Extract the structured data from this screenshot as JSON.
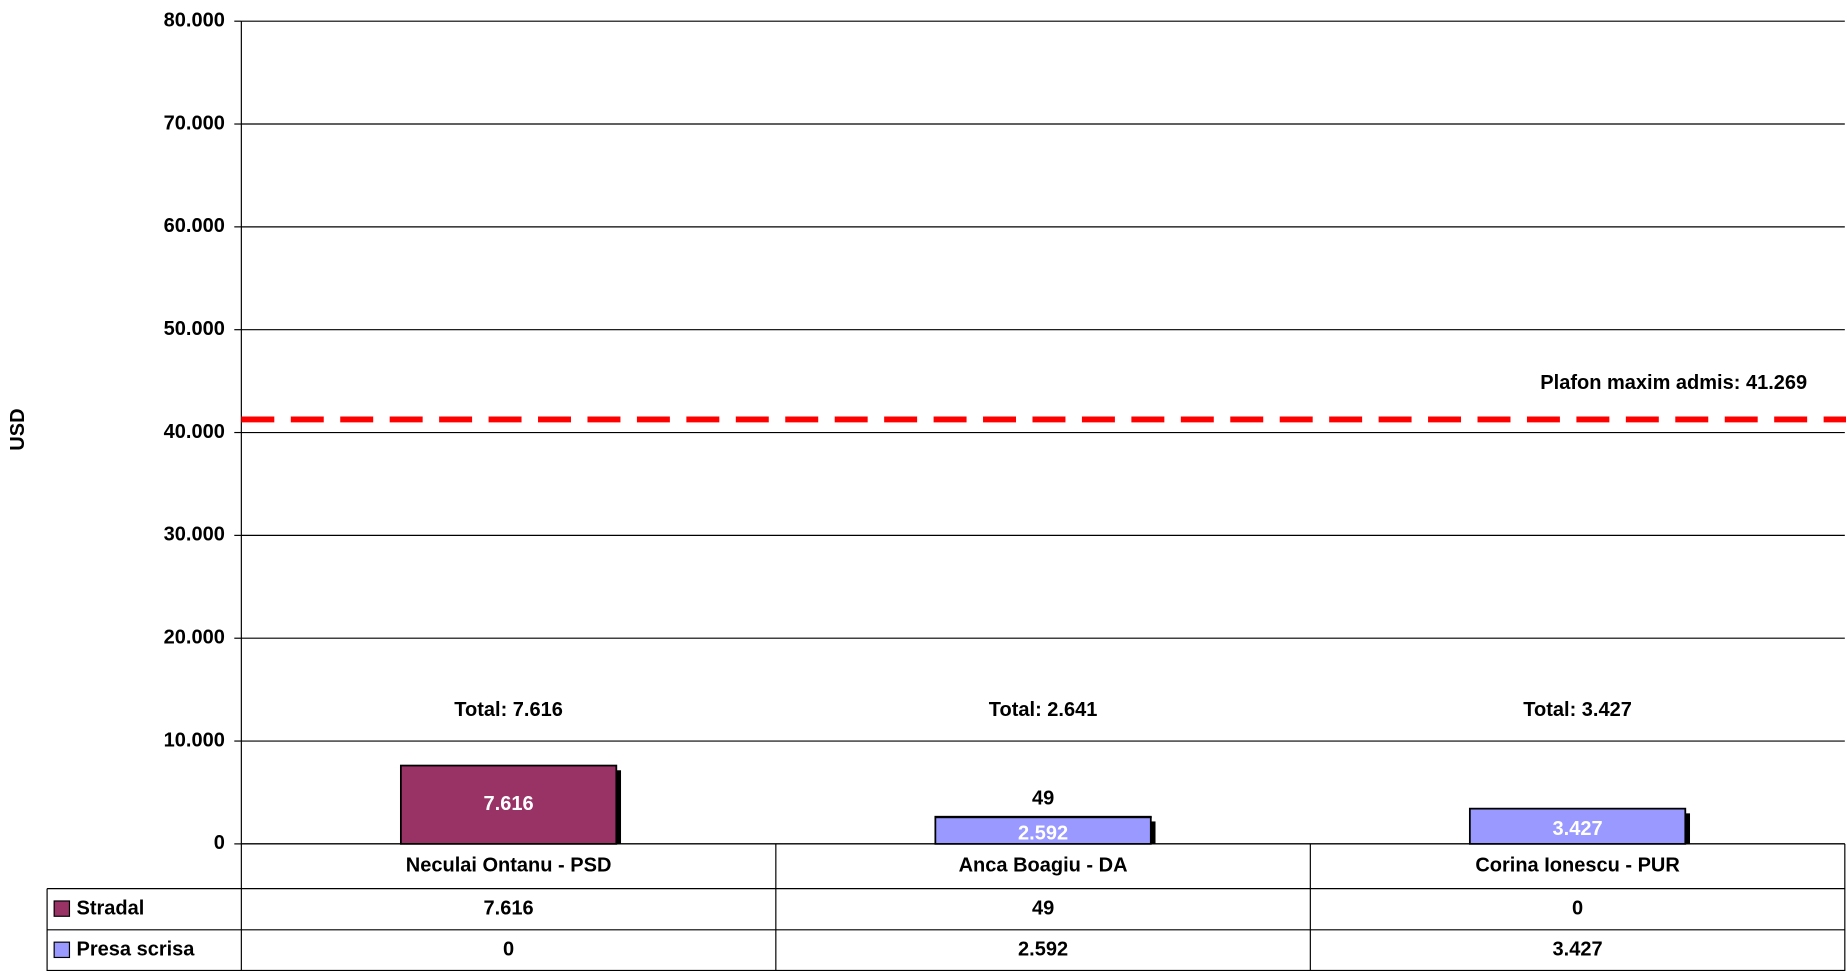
{
  "chart_data": {
    "type": "stacked_bar",
    "y_label": "USD",
    "categories": [
      "Neculai Ontanu - PSD",
      "Anca Boagiu - DA",
      "Corina Ionescu - PUR"
    ],
    "series": [
      {
        "name": "Stradal",
        "color": "#993366",
        "values": [
          7616,
          49,
          0
        ],
        "value_labels": [
          "7.616",
          "49",
          "0"
        ]
      },
      {
        "name": "Presa scrisa",
        "color": "#9999ff",
        "values": [
          0,
          2592,
          3427
        ],
        "value_labels": [
          "0",
          "2.592",
          "3.427"
        ]
      }
    ],
    "total_labels": [
      "Total: 7.616",
      "Total: 2.641",
      "Total: 3.427"
    ],
    "reference_line": {
      "value": 41269,
      "label": "Plafon maxim admis: 41.269",
      "color": "#ff0000"
    },
    "ylim": [
      0,
      80000
    ],
    "yticks": [
      0,
      {
        "value": 10000,
        "label": "10.000"
      },
      {
        "value": 20000,
        "label": "20.000"
      },
      {
        "value": 30000,
        "label": "30.000"
      },
      {
        "value": 40000,
        "label": "40.000"
      },
      {
        "value": 50000,
        "label": "50.000"
      },
      {
        "value": 60000,
        "label": "60.000"
      },
      {
        "value": 70000,
        "label": "70.000"
      },
      {
        "value": 80000,
        "label": "80.000"
      }
    ],
    "grid": true,
    "data_table": true
  }
}
